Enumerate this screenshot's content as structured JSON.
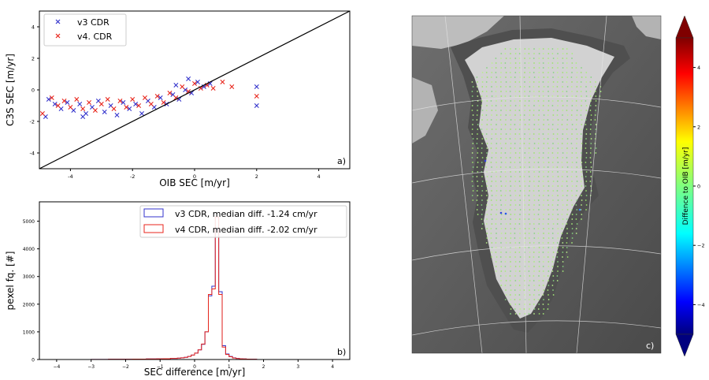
{
  "chart_data": [
    {
      "type": "scatter",
      "panel_label": "a)",
      "xlabel": "OIB SEC [m/yr]",
      "ylabel": "C3S SEC [m/yr]",
      "xlim": [
        -5,
        5
      ],
      "ylim": [
        -5,
        5
      ],
      "xticks": [
        -4,
        -2,
        0,
        2,
        4
      ],
      "yticks": [
        -4,
        -2,
        0,
        2,
        4
      ],
      "identity_line": true,
      "legend": "top-left",
      "series": [
        {
          "name": "v3  CDR",
          "color": "#3333cc",
          "marker": "x",
          "points": [
            [
              -4.7,
              -0.6
            ],
            [
              -4.5,
              -0.9
            ],
            [
              -4.3,
              -1.2
            ],
            [
              -4.1,
              -0.8
            ],
            [
              -3.9,
              -1.3
            ],
            [
              -3.7,
              -0.9
            ],
            [
              -3.5,
              -1.5
            ],
            [
              -3.3,
              -1.1
            ],
            [
              -3.1,
              -0.7
            ],
            [
              -2.9,
              -1.4
            ],
            [
              -2.7,
              -1.0
            ],
            [
              -2.5,
              -1.6
            ],
            [
              -2.3,
              -0.8
            ],
            [
              -2.1,
              -1.2
            ],
            [
              -1.9,
              -0.9
            ],
            [
              -1.7,
              -1.5
            ],
            [
              -1.5,
              -0.7
            ],
            [
              -1.3,
              -1.1
            ],
            [
              -1.1,
              -0.5
            ],
            [
              -0.9,
              -0.9
            ],
            [
              -0.7,
              -0.3
            ],
            [
              -0.5,
              -0.6
            ],
            [
              -0.3,
              0.0
            ],
            [
              -0.1,
              -0.2
            ],
            [
              0.1,
              0.5
            ],
            [
              0.3,
              0.2
            ],
            [
              -4.8,
              -1.7
            ],
            [
              -3.6,
              -1.7
            ],
            [
              -0.6,
              0.3
            ],
            [
              -0.2,
              0.7
            ],
            [
              0.5,
              0.4
            ],
            [
              2.0,
              0.2
            ],
            [
              2.0,
              -1.0
            ]
          ]
        },
        {
          "name": "v4.  CDR",
          "color": "#e8261c",
          "marker": "x",
          "points": [
            [
              -4.6,
              -0.5
            ],
            [
              -4.4,
              -1.0
            ],
            [
              -4.2,
              -0.7
            ],
            [
              -4.0,
              -1.1
            ],
            [
              -3.8,
              -0.6
            ],
            [
              -3.6,
              -1.2
            ],
            [
              -3.4,
              -0.8
            ],
            [
              -3.2,
              -1.3
            ],
            [
              -3.0,
              -0.9
            ],
            [
              -2.8,
              -0.6
            ],
            [
              -2.6,
              -1.2
            ],
            [
              -2.4,
              -0.7
            ],
            [
              -2.2,
              -1.1
            ],
            [
              -2.0,
              -0.6
            ],
            [
              -1.8,
              -1.0
            ],
            [
              -1.6,
              -0.5
            ],
            [
              -1.4,
              -0.9
            ],
            [
              -1.2,
              -0.4
            ],
            [
              -1.0,
              -0.8
            ],
            [
              -0.8,
              -0.2
            ],
            [
              -0.6,
              -0.5
            ],
            [
              -0.4,
              0.2
            ],
            [
              -0.2,
              -0.1
            ],
            [
              0.0,
              0.4
            ],
            [
              0.2,
              0.1
            ],
            [
              0.4,
              0.3
            ],
            [
              0.6,
              0.1
            ],
            [
              0.9,
              0.5
            ],
            [
              1.2,
              0.2
            ],
            [
              -4.9,
              -1.5
            ],
            [
              2.0,
              -0.4
            ]
          ]
        }
      ]
    },
    {
      "type": "histogram",
      "panel_label": "b)",
      "xlabel": "SEC difference [m/yr]",
      "ylabel": "pexel fq. [#]",
      "xlim": [
        -4.5,
        4.5
      ],
      "ylim": [
        0,
        5700
      ],
      "xticks": [
        -4,
        -3,
        -2,
        -1,
        0,
        1,
        2,
        3,
        4
      ],
      "yticks": [
        0,
        1000,
        2000,
        3000,
        4000,
        5000
      ],
      "legend": "top-right",
      "bin_width": 0.1,
      "bins_start": -3.0,
      "series": [
        {
          "name": "v3  CDR, median diff. -1.24 cm/yr",
          "color": "#3333cc",
          "counts": [
            5,
            5,
            5,
            5,
            5,
            10,
            10,
            10,
            10,
            10,
            10,
            10,
            15,
            15,
            15,
            15,
            20,
            20,
            20,
            25,
            25,
            30,
            30,
            40,
            40,
            50,
            60,
            80,
            110,
            160,
            230,
            350,
            550,
            1000,
            2300,
            2650,
            4700,
            2450,
            500,
            200,
            110,
            60,
            40,
            25,
            20,
            15,
            10,
            10
          ]
        },
        {
          "name": "v4   CDR, median diff. -2.02 cm/yr",
          "color": "#e8261c",
          "counts": [
            5,
            5,
            5,
            5,
            5,
            10,
            10,
            10,
            10,
            10,
            10,
            10,
            15,
            15,
            15,
            15,
            20,
            20,
            20,
            25,
            25,
            30,
            30,
            40,
            40,
            50,
            60,
            80,
            110,
            160,
            230,
            350,
            560,
            1000,
            2350,
            2550,
            5150,
            2350,
            450,
            180,
            100,
            55,
            35,
            25,
            20,
            15,
            10,
            10
          ]
        }
      ]
    },
    {
      "type": "map",
      "panel_label": "c)",
      "colorbar": {
        "label": "Diffence to OIB [m/yr]",
        "range": [
          -5,
          5
        ],
        "ticks": [
          4,
          2,
          0,
          -2,
          -4
        ],
        "tick_labels": [
          "4",
          "2",
          "0",
          "−2",
          "−4"
        ],
        "colormap": "jet",
        "extend": "both"
      }
    }
  ]
}
